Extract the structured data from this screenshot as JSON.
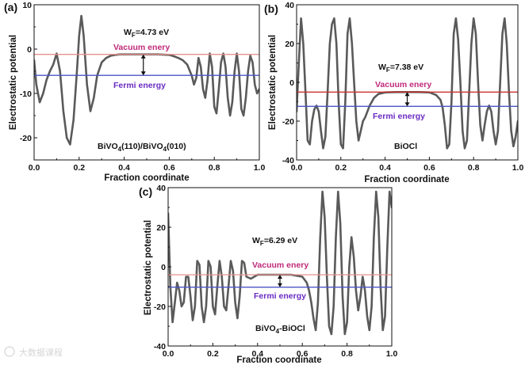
{
  "chart_data": [
    {
      "type": "line",
      "panel_label": "(a)",
      "xlabel": "Fraction coordinate",
      "ylabel": "Electrostatic potential",
      "xlim": [
        0.0,
        1.0
      ],
      "ylim": [
        -25,
        10
      ],
      "xticks": [
        0.0,
        0.2,
        0.4,
        0.6,
        0.8,
        1.0
      ],
      "xtick_labels": [
        "0.0",
        "0.2",
        "0.4",
        "0.6",
        "0.8",
        "1.0"
      ],
      "yticks": [
        10,
        0,
        -10,
        -20
      ],
      "ytick_labels": [
        "10",
        "0",
        "-10",
        "-20"
      ],
      "series": [
        {
          "name": "Electrostatic potential",
          "color": "#5a5a5a",
          "x": [
            0.0,
            0.01,
            0.025,
            0.04,
            0.055,
            0.07,
            0.085,
            0.1,
            0.115,
            0.13,
            0.145,
            0.16,
            0.175,
            0.19,
            0.2,
            0.21,
            0.22,
            0.235,
            0.25,
            0.265,
            0.28,
            0.3,
            0.32,
            0.34,
            0.36,
            0.38,
            0.4,
            0.45,
            0.5,
            0.55,
            0.6,
            0.62,
            0.64,
            0.66,
            0.68,
            0.7,
            0.71,
            0.72,
            0.73,
            0.74,
            0.75,
            0.76,
            0.77,
            0.78,
            0.79,
            0.8,
            0.81,
            0.82,
            0.83,
            0.84,
            0.85,
            0.86,
            0.87,
            0.88,
            0.89,
            0.9,
            0.91,
            0.92,
            0.93,
            0.94,
            0.95,
            0.96,
            0.97,
            0.98,
            0.99,
            1.0
          ],
          "y": [
            -2.5,
            -8.0,
            -12.0,
            -10.0,
            -7.0,
            -5.0,
            -3.5,
            -1.0,
            -5.0,
            -14.0,
            -20.0,
            -21.5,
            -16.0,
            -5.0,
            3.0,
            7.5,
            3.0,
            -8.0,
            -14.0,
            -11.0,
            -6.0,
            -3.0,
            -2.0,
            -1.5,
            -1.3,
            -1.2,
            -1.2,
            -1.2,
            -1.2,
            -1.2,
            -1.3,
            -1.6,
            -2.0,
            -2.5,
            -3.5,
            -6.0,
            -8.0,
            -6.5,
            -2.0,
            -4.0,
            -9.0,
            -11.0,
            -7.0,
            -1.0,
            -4.0,
            -13.0,
            -14.5,
            -9.0,
            -3.0,
            -1.0,
            -4.0,
            -11.0,
            -15.0,
            -12.0,
            -5.0,
            -1.0,
            -5.0,
            -13.5,
            -15.0,
            -11.0,
            -5.0,
            -1.5,
            -3.0,
            -8.0,
            -10.0,
            -9.0
          ]
        },
        {
          "name": "Vacuum energy level",
          "color": "#e8918d",
          "x": [
            0.0,
            1.0
          ],
          "y": [
            -1.2,
            -1.2
          ]
        },
        {
          "name": "Fermi energy level",
          "color": "#4b55c4",
          "x": [
            0.0,
            1.0
          ],
          "y": [
            -5.93,
            -5.93
          ]
        }
      ],
      "annotations": {
        "work_function": {
          "prefix": "W",
          "subscript": "F",
          "value": "=4.73 eV",
          "color": "#111111"
        },
        "vacuum_label": {
          "text": "Vacuum enery",
          "color": "#c0297a"
        },
        "fermi_label": {
          "text": "Fermi energy",
          "color": "#6a2cc2"
        },
        "material": [
          "BiVO",
          "4",
          "(110)/BiVO",
          "4",
          "(010)"
        ],
        "arrow": {
          "x": 0.485,
          "y_top": -1.2,
          "y_bottom": -5.93
        }
      }
    },
    {
      "type": "line",
      "panel_label": "(b)",
      "xlabel": "Fraction coordinate",
      "ylabel": "Electrostatic potential",
      "xlim": [
        0.0,
        1.0
      ],
      "ylim": [
        -40,
        40
      ],
      "xticks": [
        0.0,
        0.2,
        0.4,
        0.6,
        0.8,
        1.0
      ],
      "xtick_labels": [
        "0.0",
        "0.2",
        "0.4",
        "0.6",
        "0.8",
        "1.0"
      ],
      "yticks": [
        40,
        20,
        0,
        -20,
        -40
      ],
      "ytick_labels": [
        "40",
        "20",
        "0",
        "-20",
        "-40"
      ],
      "series": [
        {
          "name": "Electrostatic potential",
          "color": "#5a5a5a",
          "x": [
            0.0,
            0.01,
            0.02,
            0.03,
            0.04,
            0.05,
            0.06,
            0.07,
            0.08,
            0.09,
            0.1,
            0.11,
            0.12,
            0.13,
            0.14,
            0.15,
            0.16,
            0.17,
            0.18,
            0.19,
            0.2,
            0.21,
            0.22,
            0.23,
            0.24,
            0.25,
            0.26,
            0.27,
            0.28,
            0.29,
            0.3,
            0.31,
            0.32,
            0.33,
            0.34,
            0.35,
            0.37,
            0.4,
            0.45,
            0.5,
            0.55,
            0.6,
            0.63,
            0.65,
            0.66,
            0.67,
            0.68,
            0.69,
            0.7,
            0.71,
            0.72,
            0.73,
            0.74,
            0.75,
            0.76,
            0.77,
            0.78,
            0.79,
            0.8,
            0.81,
            0.82,
            0.83,
            0.84,
            0.85,
            0.86,
            0.87,
            0.88,
            0.89,
            0.9,
            0.91,
            0.92,
            0.93,
            0.94,
            0.95,
            0.96,
            0.97,
            0.98,
            0.99,
            1.0
          ],
          "y": [
            -15.0,
            10.0,
            33.0,
            20.0,
            -5.0,
            -30.0,
            -32.0,
            -20.0,
            -14.0,
            -12.0,
            -15.0,
            -25.0,
            -34.0,
            -28.0,
            -5.0,
            20.0,
            30.0,
            33.0,
            20.0,
            -10.0,
            -32.0,
            -34.0,
            -10.0,
            25.0,
            33.0,
            20.0,
            0.0,
            -20.0,
            -30.0,
            -25.0,
            -20.0,
            -18.0,
            -15.0,
            -12.0,
            -10.0,
            -8.0,
            -6.0,
            -5.2,
            -5.0,
            -5.0,
            -5.0,
            -5.2,
            -6.5,
            -9.0,
            -13.0,
            -22.0,
            -34.0,
            -32.0,
            -10.0,
            25.0,
            33.0,
            22.0,
            0.0,
            -25.0,
            -34.0,
            -30.0,
            -5.0,
            20.0,
            33.0,
            25.0,
            0.0,
            -22.0,
            -30.0,
            -22.0,
            -15.0,
            -12.0,
            -15.0,
            -25.0,
            -32.0,
            -25.0,
            0.0,
            25.0,
            33.0,
            20.0,
            -5.0,
            -25.0,
            -33.0,
            -28.0,
            -20.0
          ]
        },
        {
          "name": "Vacuum energy level",
          "color": "#c9332f",
          "x": [
            0.0,
            1.0
          ],
          "y": [
            -5.0,
            -5.0
          ]
        },
        {
          "name": "Fermi energy level",
          "color": "#4b55c4",
          "x": [
            0.0,
            1.0
          ],
          "y": [
            -12.38,
            -12.38
          ]
        }
      ],
      "annotations": {
        "work_function": {
          "prefix": "W",
          "subscript": "F",
          "value": "=7.38 eV",
          "color": "#111111"
        },
        "vacuum_label": {
          "text": "Vacuum enery",
          "color": "#c0297a"
        },
        "fermi_label": {
          "text": "Fermi energy",
          "color": "#6a2cc2"
        },
        "material": [
          "BiOCl"
        ],
        "arrow": {
          "x": 0.5,
          "y_top": -5.0,
          "y_bottom": -12.38
        }
      }
    },
    {
      "type": "line",
      "panel_label": "(c)",
      "xlabel": "Fraction coordinate",
      "ylabel": "Electrostatic potential",
      "xlim": [
        0.0,
        1.0
      ],
      "ylim": [
        -40,
        40
      ],
      "xticks": [
        0.0,
        0.2,
        0.4,
        0.6,
        0.8,
        1.0
      ],
      "xtick_labels": [
        "0.0",
        "0.2",
        "0.4",
        "0.6",
        "0.8",
        "1.0"
      ],
      "yticks": [
        40,
        20,
        0,
        -20,
        -40
      ],
      "ytick_labels": [
        "40",
        "20",
        "0",
        "-20",
        "-40"
      ],
      "series": [
        {
          "name": "Electrostatic potential",
          "color": "#5a5a5a",
          "x": [
            0.0,
            0.01,
            0.02,
            0.03,
            0.04,
            0.05,
            0.06,
            0.07,
            0.08,
            0.09,
            0.1,
            0.11,
            0.12,
            0.13,
            0.14,
            0.15,
            0.16,
            0.17,
            0.18,
            0.19,
            0.2,
            0.21,
            0.22,
            0.23,
            0.24,
            0.25,
            0.26,
            0.27,
            0.28,
            0.29,
            0.3,
            0.31,
            0.32,
            0.33,
            0.34,
            0.35,
            0.37,
            0.4,
            0.45,
            0.5,
            0.55,
            0.6,
            0.62,
            0.63,
            0.64,
            0.65,
            0.66,
            0.67,
            0.68,
            0.69,
            0.7,
            0.71,
            0.72,
            0.73,
            0.74,
            0.75,
            0.76,
            0.77,
            0.78,
            0.79,
            0.8,
            0.81,
            0.82,
            0.83,
            0.84,
            0.85,
            0.86,
            0.87,
            0.88,
            0.89,
            0.9,
            0.91,
            0.92,
            0.93,
            0.94,
            0.95,
            0.96,
            0.97,
            0.98,
            0.99,
            1.0
          ],
          "y": [
            27.0,
            -10.0,
            -28.0,
            -18.0,
            -8.0,
            -12.0,
            -20.0,
            -18.0,
            -5.0,
            -5.0,
            -15.0,
            -27.0,
            -20.0,
            3.0,
            1.0,
            -20.0,
            -28.0,
            -20.0,
            3.0,
            0.0,
            -20.0,
            -24.0,
            -10.0,
            3.0,
            -5.0,
            -20.0,
            -22.0,
            -10.0,
            3.0,
            -2.0,
            -18.0,
            -26.0,
            -15.0,
            3.0,
            2.0,
            -5.0,
            -6.0,
            -4.0,
            -4.0,
            -4.0,
            -4.0,
            -5.0,
            -8.0,
            -12.0,
            -18.0,
            -26.0,
            -32.0,
            -18.0,
            15.0,
            38.0,
            25.0,
            -5.0,
            -30.0,
            -34.0,
            -20.0,
            15.0,
            38.0,
            22.0,
            -15.0,
            -34.0,
            -28.0,
            0.0,
            15.0,
            5.0,
            -12.0,
            -22.0,
            -15.0,
            -5.0,
            -12.0,
            -25.0,
            -32.0,
            -20.0,
            15.0,
            38.0,
            25.0,
            -10.0,
            -32.0,
            -25.0,
            10.0,
            38.0,
            30.0
          ]
        },
        {
          "name": "Vacuum energy level",
          "color": "#e8918d",
          "x": [
            0.0,
            1.0
          ],
          "y": [
            -4.0,
            -4.0
          ]
        },
        {
          "name": "Fermi energy level",
          "color": "#4b55c4",
          "x": [
            0.0,
            1.0
          ],
          "y": [
            -10.29,
            -10.29
          ]
        }
      ],
      "annotations": {
        "work_function": {
          "prefix": "W",
          "subscript": "F",
          "value": "=6.29 eV",
          "color": "#111111"
        },
        "vacuum_label": {
          "text": "Vacuum enery",
          "color": "#c0297a"
        },
        "fermi_label": {
          "text": "Fermi energy",
          "color": "#6a2cc2"
        },
        "material": [
          "BiVO",
          "4",
          "-BiOCl"
        ],
        "arrow": {
          "x": 0.5,
          "y_top": -4.0,
          "y_bottom": -10.29
        }
      }
    }
  ],
  "watermark": "大数据课程"
}
